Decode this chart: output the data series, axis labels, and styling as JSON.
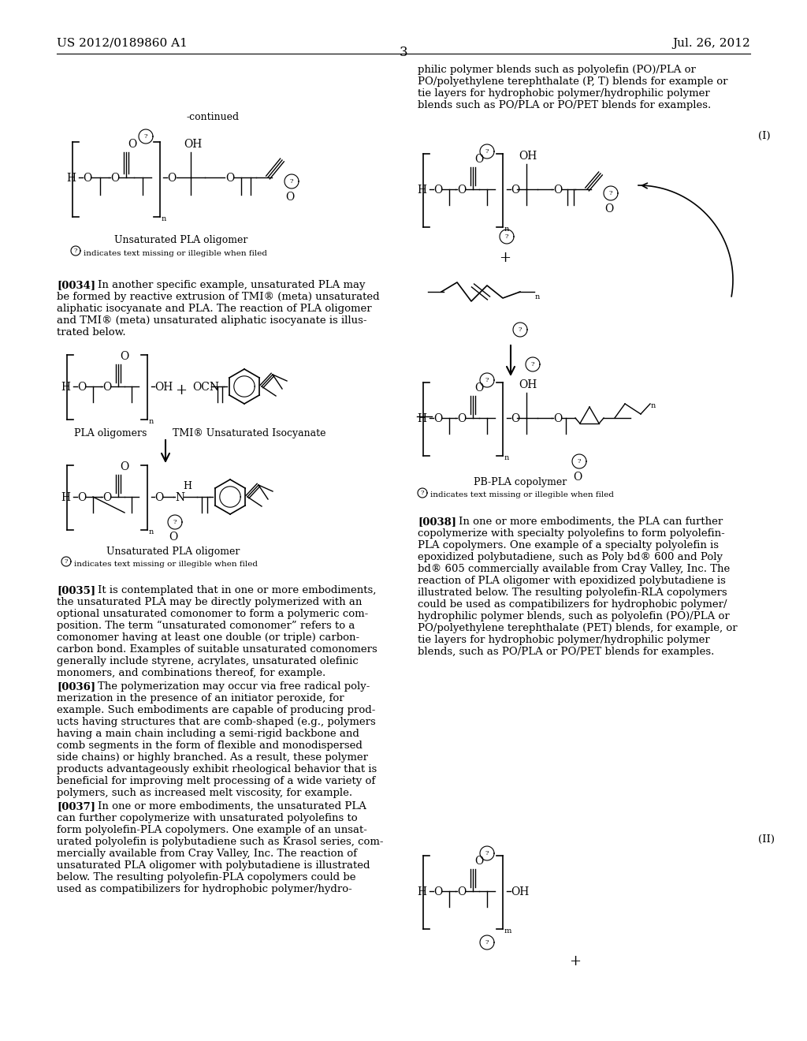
{
  "background_color": "#ffffff",
  "header_left": "US 2012/0189860 A1",
  "header_right": "Jul. 26, 2012",
  "page_number": "3"
}
